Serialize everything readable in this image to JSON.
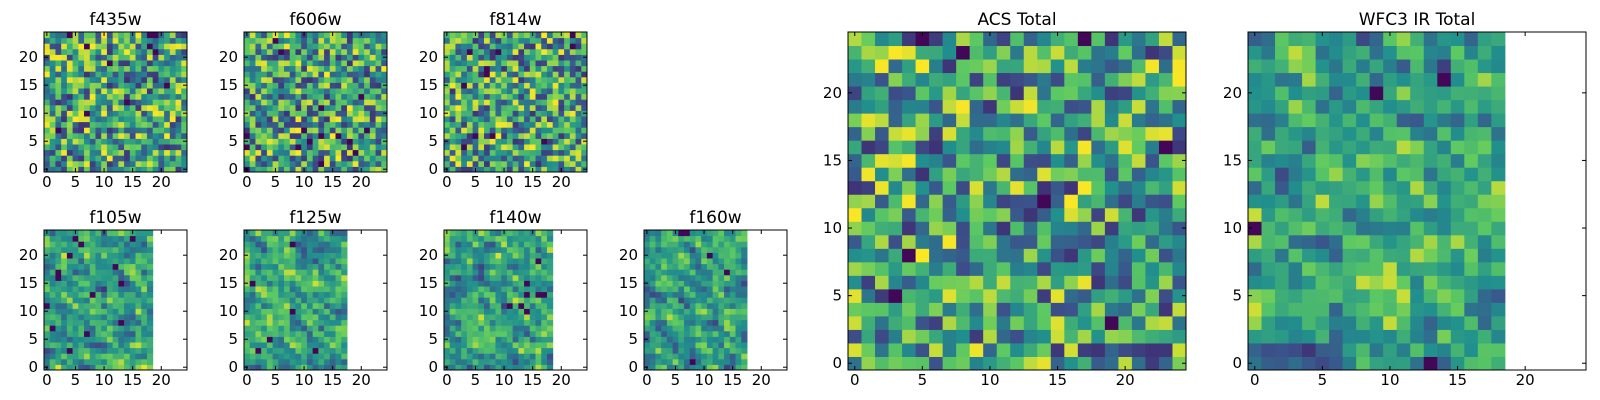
{
  "figure": {
    "colormap": [
      "#440154",
      "#3b528b",
      "#21908d",
      "#5dc962",
      "#fde725"
    ],
    "background": "#ffffff"
  },
  "chart_data": [
    {
      "type": "heatmap",
      "title": "f435w",
      "grid_size": 25,
      "data_columns": 25,
      "xlim": [
        0,
        24
      ],
      "ylim": [
        0,
        24
      ],
      "xticks": [
        0,
        5,
        10,
        15,
        20
      ],
      "yticks": [
        0,
        5,
        10,
        15,
        20
      ],
      "seed": 11
    },
    {
      "type": "heatmap",
      "title": "f606w",
      "grid_size": 25,
      "data_columns": 25,
      "xlim": [
        0,
        24
      ],
      "ylim": [
        0,
        24
      ],
      "xticks": [
        0,
        5,
        10,
        15,
        20
      ],
      "yticks": [
        0,
        5,
        10,
        15,
        20
      ],
      "seed": 23
    },
    {
      "type": "heatmap",
      "title": "f814w",
      "grid_size": 25,
      "data_columns": 25,
      "xlim": [
        0,
        24
      ],
      "ylim": [
        0,
        24
      ],
      "xticks": [
        0,
        5,
        10,
        15,
        20
      ],
      "yticks": [
        0,
        5,
        10,
        15,
        20
      ],
      "seed": 37
    },
    {
      "type": "heatmap",
      "title": "f105w",
      "grid_size": 25,
      "data_columns": 19,
      "xlim": [
        0,
        24
      ],
      "ylim": [
        0,
        24
      ],
      "xticks": [
        0,
        5,
        10,
        15,
        20
      ],
      "yticks": [
        0,
        5,
        10,
        15,
        20
      ],
      "seed": 41
    },
    {
      "type": "heatmap",
      "title": "f125w",
      "grid_size": 25,
      "data_columns": 18,
      "xlim": [
        0,
        24
      ],
      "ylim": [
        0,
        24
      ],
      "xticks": [
        0,
        5,
        10,
        15,
        20
      ],
      "yticks": [
        0,
        5,
        10,
        15,
        20
      ],
      "seed": 53
    },
    {
      "type": "heatmap",
      "title": "f140w",
      "grid_size": 25,
      "data_columns": 19,
      "xlim": [
        0,
        24
      ],
      "ylim": [
        0,
        24
      ],
      "xticks": [
        0,
        5,
        10,
        15,
        20
      ],
      "yticks": [
        0,
        5,
        10,
        15,
        20
      ],
      "seed": 67
    },
    {
      "type": "heatmap",
      "title": "f160w",
      "grid_size": 25,
      "data_columns": 18,
      "xlim": [
        0,
        24
      ],
      "ylim": [
        0,
        24
      ],
      "xticks": [
        0,
        5,
        10,
        15,
        20
      ],
      "yticks": [
        0,
        5,
        10,
        15,
        20
      ],
      "seed": 79
    },
    {
      "type": "heatmap",
      "title": "ACS Total",
      "grid_size": 25,
      "data_columns": 25,
      "xlim": [
        0,
        24
      ],
      "ylim": [
        0,
        24
      ],
      "xticks": [
        0,
        5,
        10,
        15,
        20
      ],
      "yticks": [
        0,
        5,
        10,
        15,
        20
      ],
      "seed": 83
    },
    {
      "type": "heatmap",
      "title": "WFC3 IR Total",
      "grid_size": 25,
      "data_columns": 19,
      "xlim": [
        0,
        24
      ],
      "ylim": [
        0,
        24
      ],
      "xticks": [
        0,
        5,
        10,
        15,
        20
      ],
      "yticks": [
        0,
        5,
        10,
        15,
        20
      ],
      "seed": 97
    }
  ]
}
